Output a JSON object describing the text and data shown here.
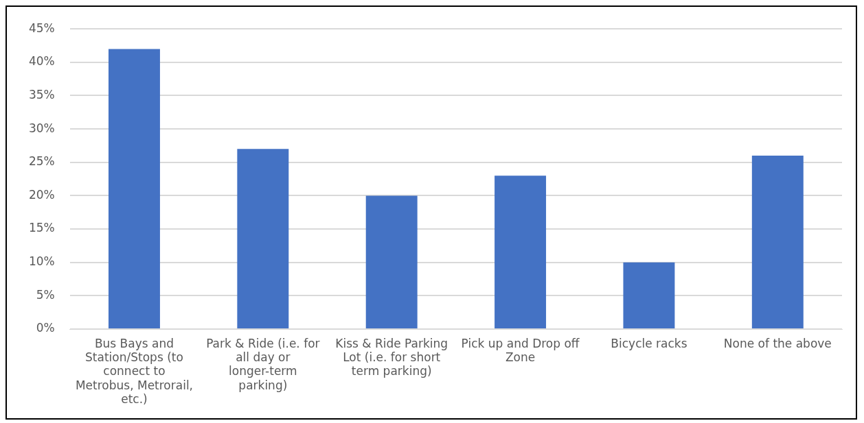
{
  "chart_data": {
    "type": "bar",
    "categories": [
      "Bus Bays and Station/Stops (to connect to Metrobus, Metrorail, etc.)",
      "Park & Ride (i.e. for all day or longer-term parking)",
      "Kiss & Ride Parking Lot (i.e. for short term parking)",
      "Pick up and Drop off Zone",
      "Bicycle racks",
      "None of the above"
    ],
    "values": [
      42,
      27,
      20,
      23,
      10,
      26
    ],
    "color": "#4472c4",
    "ylim": [
      0,
      45
    ],
    "yticks": [
      {
        "value": 0,
        "label": "0%"
      },
      {
        "value": 5,
        "label": "5%"
      },
      {
        "value": 10,
        "label": "10%"
      },
      {
        "value": 15,
        "label": "15%"
      },
      {
        "value": 20,
        "label": "20%"
      },
      {
        "value": 25,
        "label": "25%"
      },
      {
        "value": 30,
        "label": "30%"
      },
      {
        "value": 35,
        "label": "35%"
      },
      {
        "value": 40,
        "label": "40%"
      },
      {
        "value": 45,
        "label": "45%"
      }
    ],
    "grid": "y",
    "legend": false
  }
}
